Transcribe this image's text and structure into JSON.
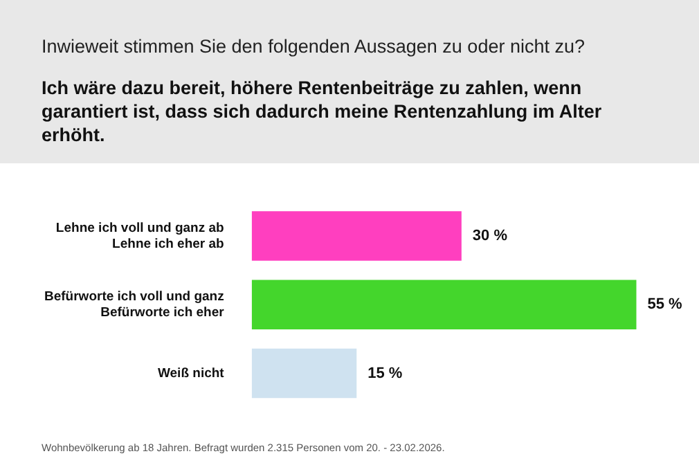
{
  "chart_data": {
    "type": "bar",
    "orientation": "horizontal",
    "title": "Inwieweit stimmen Sie den folgenden Aussagen zu oder nicht zu?",
    "subtitle": "Ich wäre dazu bereit, höhere Rentenbeiträge zu zahlen, wenn garantiert ist, dass sich dadurch meine Rentenzahlung im Alter erhöht.",
    "categories": [
      "Lehne ich voll und ganz ab\nLehne ich eher ab",
      "Befürworte ich voll und ganz\nBefürworte ich eher",
      "Weiß nicht"
    ],
    "values": [
      30,
      55,
      15
    ],
    "colors": [
      "#ff3fbf",
      "#44d62c",
      "#cfe2f0"
    ],
    "value_labels": [
      "30 %",
      "55 %",
      "15 %"
    ],
    "grid": false,
    "legend": false,
    "annotations": [
      "Wohnbevölkerung ab 18 Jahren. Befragt wurden 2.315 Personen vom 20. - 23.02.2026."
    ]
  }
}
